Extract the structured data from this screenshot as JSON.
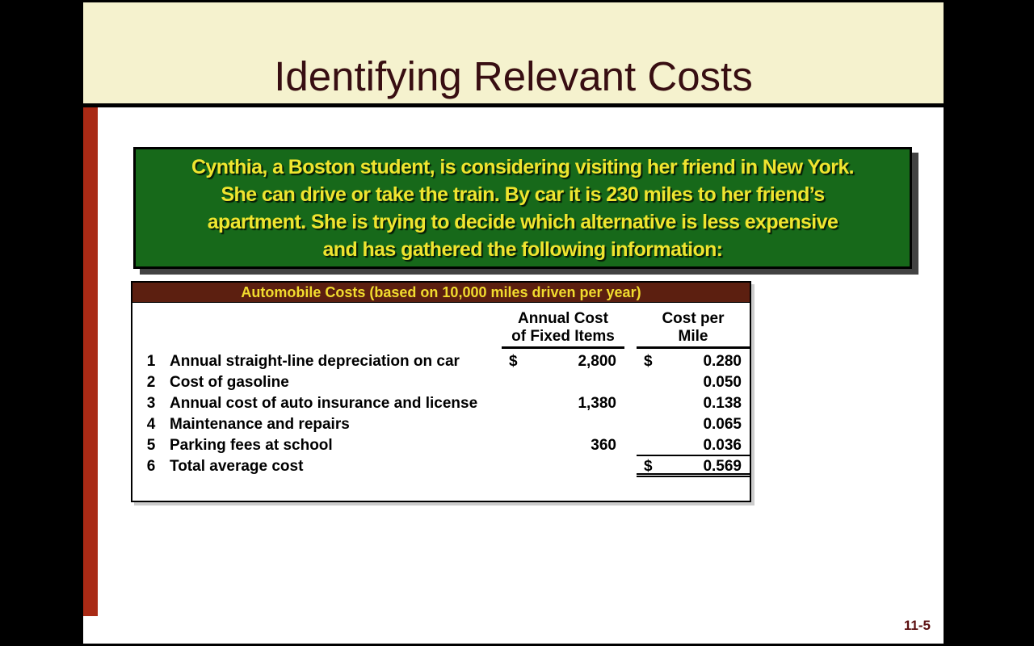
{
  "slide": {
    "title": "Identifying Relevant Costs",
    "page_number": "11-5",
    "colors": {
      "screen_background": "#000000",
      "slide_background": "#FFFFFF",
      "title_band": "#F5F2CE",
      "title_text": "#380E12",
      "left_accent_bar": "#A92A15",
      "callout_background": "#17691A",
      "callout_border": "#000000",
      "callout_text": "#EFE52F",
      "table_header_background": "#5C1F10",
      "table_header_text": "#F2DC2E",
      "table_text": "#000000",
      "page_number_text": "#5C1011"
    }
  },
  "callout": {
    "lines": [
      "Cynthia, a Boston student, is considering visiting her friend in New York.",
      "She can drive or take the train. By car it is 230 miles to her friend’s",
      "apartment. She is trying to decide which alternative is less expensive",
      "and has gathered the following information:"
    ]
  },
  "table": {
    "title": "Automobile Costs (based on 10,000 miles driven per year)",
    "col_headers": {
      "annual_line1": "Annual Cost",
      "annual_line2": "of Fixed Items",
      "mile_line1": "Cost per",
      "mile_line2": "Mile"
    },
    "rows": [
      {
        "num": "1",
        "desc": "Annual straight-line depreciation on car",
        "annual_currency": "$",
        "annual": "2,800",
        "mile_currency": "$",
        "mile": "0.280"
      },
      {
        "num": "2",
        "desc": "Cost of gasoline",
        "mile": "0.050"
      },
      {
        "num": "3",
        "desc": "Annual cost of auto insurance and license",
        "annual": "1,380",
        "mile": "0.138"
      },
      {
        "num": "4",
        "desc": "Maintenance and repairs",
        "mile": "0.065"
      },
      {
        "num": "5",
        "desc": "Parking fees at school",
        "annual": "360",
        "mile": "0.036"
      },
      {
        "num": "6",
        "desc": "Total average cost",
        "mile_currency": "$",
        "mile": "0.569"
      }
    ]
  }
}
